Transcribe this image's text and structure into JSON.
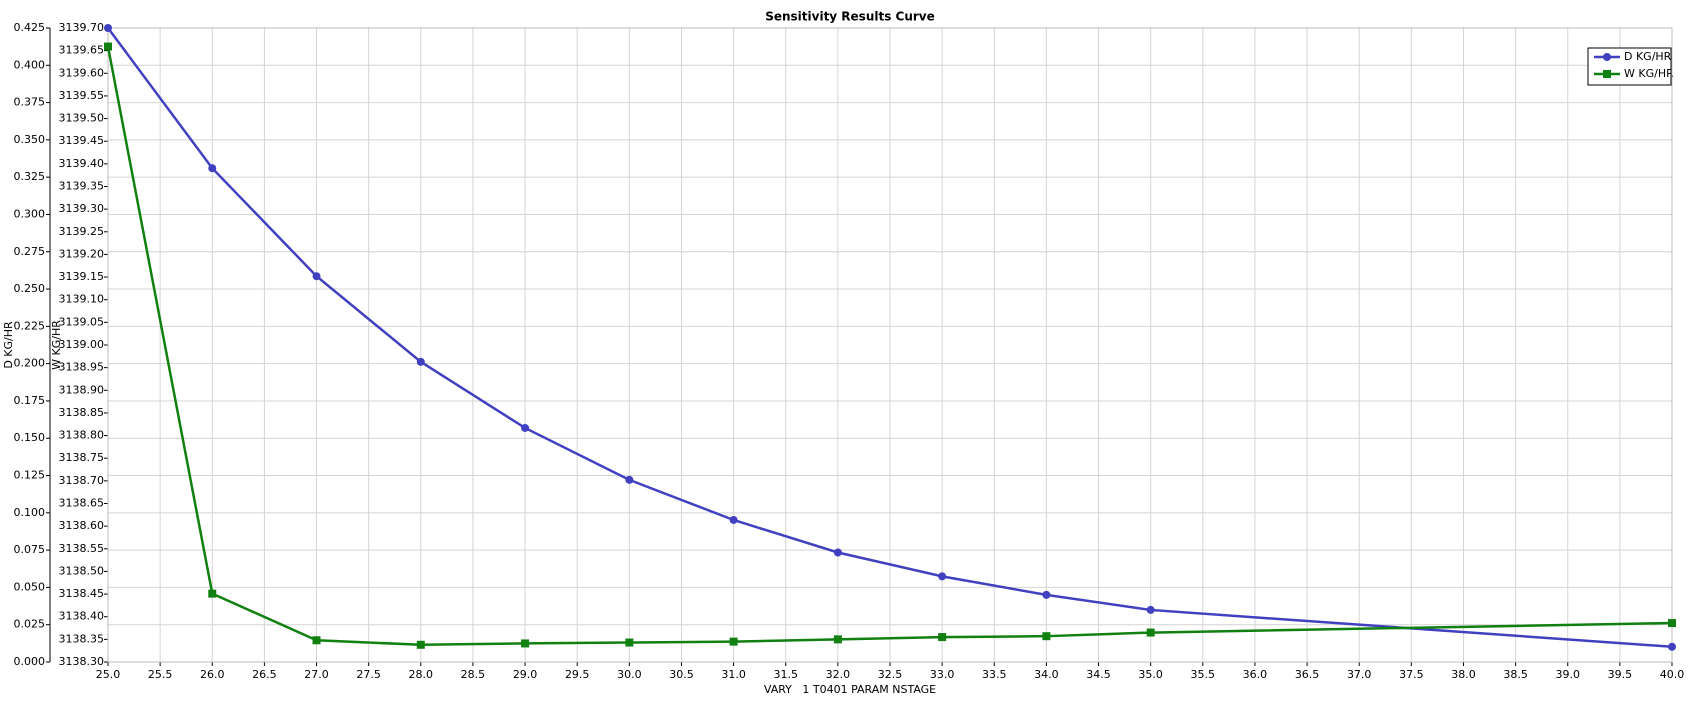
{
  "chart_data": {
    "type": "line",
    "title": "Sensitivity Results Curve",
    "x_label": "VARY   1 T0401 PARAM NSTAGE",
    "y_label": "D KG/HR",
    "y2_label": "W KG/HR",
    "x": [
      25,
      26,
      27,
      28,
      29,
      30,
      31,
      32,
      33,
      34,
      35,
      40
    ],
    "series": [
      {
        "name": "D KG/HR",
        "color": "#4040c0",
        "marker": "circle",
        "values": [
          0.425,
          0.331,
          0.2586,
          0.2012,
          0.1569,
          0.1221,
          0.0952,
          0.0734,
          0.0574,
          0.045,
          0.0349,
          0.0102
        ]
      },
      {
        "name": "W KG/HR",
        "color": "#108010",
        "marker": "square",
        "axis": "y2",
        "values": [
          3139.659,
          3138.451,
          3138.348,
          3138.338,
          3138.341,
          3138.343,
          3138.345,
          3138.35,
          3138.355,
          3138.357,
          3138.365,
          3138.386
        ]
      }
    ],
    "xlim": [
      25,
      40
    ],
    "xticks": [
      {
        "value": 25,
        "label": "25.0"
      },
      25.5,
      {
        "value": 26,
        "label": "26.0"
      },
      26.5,
      {
        "value": 27,
        "label": "27.0"
      },
      27.5,
      {
        "value": 28,
        "label": "28.0"
      },
      28.5,
      {
        "value": 29,
        "label": "29.0"
      },
      29.5,
      {
        "value": 30,
        "label": "30.0"
      },
      30.5,
      {
        "value": 31,
        "label": "31.0"
      },
      31.5,
      {
        "value": 32,
        "label": "32.0"
      },
      32.5,
      {
        "value": 33,
        "label": "33.0"
      },
      33.5,
      {
        "value": 34,
        "label": "34.0"
      },
      34.5,
      {
        "value": 35,
        "label": "35.0"
      },
      35.5,
      {
        "value": 36,
        "label": "36.0"
      },
      36.5,
      {
        "value": 37,
        "label": "37.0"
      },
      37.5,
      {
        "value": 38,
        "label": "38.0"
      },
      38.5,
      {
        "value": 39,
        "label": "39.0"
      },
      39.5,
      {
        "value": 40,
        "label": "40.0"
      }
    ],
    "ylim": [
      0,
      0.425
    ],
    "yticks": [
      {
        "value": 0,
        "label": "0.000"
      },
      0.025,
      {
        "value": 0.05,
        "label": "0.050"
      },
      0.075,
      {
        "value": 0.1,
        "label": "0.100"
      },
      0.125,
      {
        "value": 0.15,
        "label": "0.150"
      },
      0.175,
      {
        "value": 0.2,
        "label": "0.200"
      },
      0.225,
      {
        "value": 0.25,
        "label": "0.250"
      },
      0.275,
      {
        "value": 0.3,
        "label": "0.300"
      },
      0.325,
      {
        "value": 0.35,
        "label": "0.350"
      },
      0.375,
      {
        "value": 0.4,
        "label": "0.400"
      },
      0.425
    ],
    "y2lim": [
      3138.3,
      3139.7
    ],
    "y2ticks": [
      {
        "value": 3138.3,
        "label": "3138.30"
      },
      3138.35,
      {
        "value": 3138.4,
        "label": "3138.40"
      },
      3138.45,
      {
        "value": 3138.5,
        "label": "3138.50"
      },
      3138.55,
      {
        "value": 3138.6,
        "label": "3138.60"
      },
      3138.65,
      {
        "value": 3138.7,
        "label": "3138.70"
      },
      3138.75,
      {
        "value": 3138.8,
        "label": "3138.80"
      },
      3138.85,
      {
        "value": 3138.9,
        "label": "3138.90"
      },
      3138.95,
      {
        "value": 3139,
        "label": "3139.00"
      },
      3139.05,
      {
        "value": 3139.1,
        "label": "3139.10"
      },
      3139.15,
      {
        "value": 3139.2,
        "label": "3139.20"
      },
      3139.25,
      {
        "value": 3139.3,
        "label": "3139.30"
      },
      3139.35,
      {
        "value": 3139.4,
        "label": "3139.40"
      },
      3139.45,
      {
        "value": 3139.5,
        "label": "3139.50"
      },
      3139.55,
      {
        "value": 3139.6,
        "label": "3139.60"
      },
      3139.65,
      {
        "value": 3139.7,
        "label": "3139.70"
      }
    ],
    "grid": true,
    "legend": "upper right"
  }
}
